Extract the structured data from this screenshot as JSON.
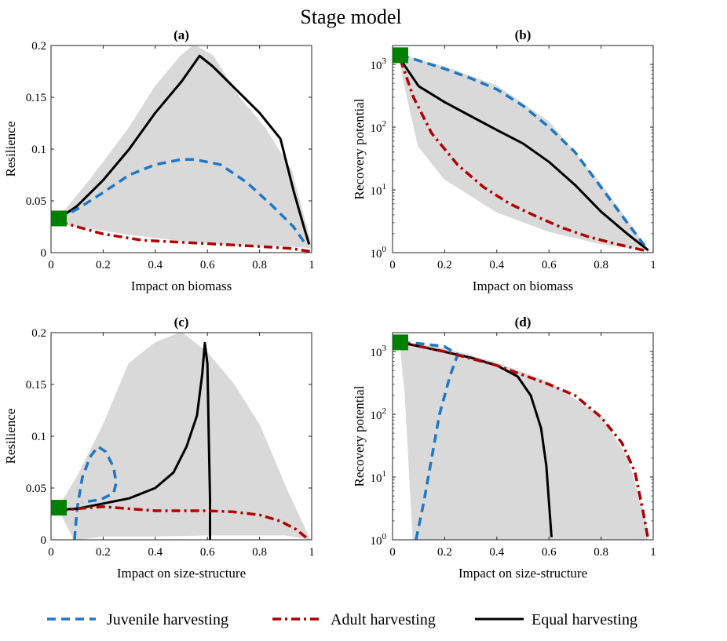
{
  "figure": {
    "title": "Stage model",
    "legend": [
      {
        "label": "Juvenile harvesting",
        "color": "#1f77c4",
        "style": "dashed"
      },
      {
        "label": "Adult harvesting",
        "color": "#b00000",
        "style": "dashdot"
      },
      {
        "label": "Equal harvesting",
        "color": "#000000",
        "style": "solid"
      }
    ]
  },
  "chart_data": [
    {
      "panel": "(a)",
      "type": "line",
      "xlabel": "Impact on biomass",
      "ylabel": "Resilience",
      "xlim": [
        0,
        1
      ],
      "ylim": [
        0,
        0.2
      ],
      "yscale": "linear",
      "xticks": [
        0,
        0.2,
        0.4,
        0.6,
        0.8,
        1
      ],
      "xticklabels": [
        "0",
        "0.2",
        "0.4",
        "0.6",
        "0.8",
        "1"
      ],
      "yticks": [
        0,
        0.05,
        0.1,
        0.15,
        0.2
      ],
      "yticklabels": [
        "0",
        "0.05",
        "0.1",
        "0.15",
        "0.2"
      ],
      "marker": {
        "x": 0.03,
        "y": 0.033,
        "color": "#008000"
      },
      "envelope_color": "#d9d9d9",
      "envelope": [
        [
          0.03,
          0.033
        ],
        [
          0.15,
          0.07
        ],
        [
          0.3,
          0.12
        ],
        [
          0.4,
          0.16
        ],
        [
          0.5,
          0.19
        ],
        [
          0.55,
          0.2
        ],
        [
          0.62,
          0.19
        ],
        [
          0.72,
          0.15
        ],
        [
          0.82,
          0.12
        ],
        [
          0.92,
          0.08
        ],
        [
          1.0,
          0.005
        ],
        [
          0.9,
          0.007
        ],
        [
          0.7,
          0.008
        ],
        [
          0.5,
          0.012
        ],
        [
          0.3,
          0.018
        ],
        [
          0.1,
          0.026
        ],
        [
          0.03,
          0.028
        ]
      ],
      "series": [
        {
          "name": "Equal harvesting",
          "points": [
            [
              0.03,
              0.033
            ],
            [
              0.1,
              0.045
            ],
            [
              0.2,
              0.07
            ],
            [
              0.3,
              0.1
            ],
            [
              0.4,
              0.135
            ],
            [
              0.5,
              0.165
            ],
            [
              0.57,
              0.19
            ],
            [
              0.62,
              0.18
            ],
            [
              0.7,
              0.16
            ],
            [
              0.8,
              0.135
            ],
            [
              0.88,
              0.11
            ],
            [
              0.93,
              0.06
            ],
            [
              0.97,
              0.025
            ],
            [
              0.99,
              0.008
            ]
          ]
        },
        {
          "name": "Juvenile harvesting",
          "points": [
            [
              0.03,
              0.033
            ],
            [
              0.1,
              0.042
            ],
            [
              0.2,
              0.058
            ],
            [
              0.3,
              0.075
            ],
            [
              0.4,
              0.085
            ],
            [
              0.5,
              0.09
            ],
            [
              0.55,
              0.09
            ],
            [
              0.65,
              0.085
            ],
            [
              0.75,
              0.068
            ],
            [
              0.85,
              0.045
            ],
            [
              0.93,
              0.025
            ],
            [
              0.98,
              0.007
            ]
          ]
        },
        {
          "name": "Adult harvesting",
          "points": [
            [
              0.03,
              0.03
            ],
            [
              0.1,
              0.025
            ],
            [
              0.2,
              0.018
            ],
            [
              0.35,
              0.012
            ],
            [
              0.5,
              0.01
            ],
            [
              0.65,
              0.008
            ],
            [
              0.8,
              0.006
            ],
            [
              0.92,
              0.004
            ],
            [
              1.0,
              0.001
            ]
          ]
        }
      ]
    },
    {
      "panel": "(b)",
      "type": "line",
      "xlabel": "Impact on biomass",
      "ylabel": "Recovery potential",
      "xlim": [
        0,
        1
      ],
      "ylim": [
        1,
        2000
      ],
      "yscale": "log",
      "xticks": [
        0,
        0.2,
        0.4,
        0.6,
        0.8,
        1
      ],
      "xticklabels": [
        "0",
        "0.2",
        "0.4",
        "0.6",
        "0.8",
        "1"
      ],
      "yticks": [
        1,
        10,
        100,
        1000
      ],
      "yticklabels": [
        [
          "10",
          "0"
        ],
        [
          "10",
          "1"
        ],
        [
          "10",
          "2"
        ],
        [
          "10",
          "3"
        ]
      ],
      "marker": {
        "x": 0.03,
        "y": 1400,
        "color": "#008000"
      },
      "envelope_color": "#d9d9d9",
      "envelope": [
        [
          0.03,
          1400
        ],
        [
          0.2,
          900
        ],
        [
          0.4,
          450
        ],
        [
          0.6,
          120
        ],
        [
          0.8,
          12
        ],
        [
          0.98,
          1.1
        ],
        [
          0.8,
          1.4
        ],
        [
          0.6,
          2.2
        ],
        [
          0.4,
          4.5
        ],
        [
          0.2,
          15
        ],
        [
          0.1,
          50
        ],
        [
          0.03,
          1000
        ]
      ],
      "series": [
        {
          "name": "Juvenile harvesting",
          "points": [
            [
              0.03,
              1400
            ],
            [
              0.1,
              1150
            ],
            [
              0.2,
              850
            ],
            [
              0.3,
              600
            ],
            [
              0.4,
              400
            ],
            [
              0.5,
              220
            ],
            [
              0.6,
              100
            ],
            [
              0.7,
              40
            ],
            [
              0.8,
              11
            ],
            [
              0.9,
              3
            ],
            [
              0.98,
              1.1
            ]
          ]
        },
        {
          "name": "Equal harvesting",
          "points": [
            [
              0.03,
              1200
            ],
            [
              0.1,
              450
            ],
            [
              0.2,
              250
            ],
            [
              0.3,
              150
            ],
            [
              0.4,
              90
            ],
            [
              0.5,
              55
            ],
            [
              0.6,
              28
            ],
            [
              0.7,
              12
            ],
            [
              0.8,
              4.5
            ],
            [
              0.9,
              2
            ],
            [
              0.98,
              1.1
            ]
          ]
        },
        {
          "name": "Adult harvesting",
          "points": [
            [
              0.03,
              1200
            ],
            [
              0.08,
              300
            ],
            [
              0.15,
              80
            ],
            [
              0.25,
              25
            ],
            [
              0.35,
              11
            ],
            [
              0.45,
              6
            ],
            [
              0.55,
              3.8
            ],
            [
              0.65,
              2.5
            ],
            [
              0.75,
              1.8
            ],
            [
              0.85,
              1.4
            ],
            [
              0.98,
              1.05
            ]
          ]
        }
      ]
    },
    {
      "panel": "(c)",
      "type": "line",
      "xlabel": "Impact on size-structure",
      "ylabel": "Resilience",
      "xlim": [
        0,
        1
      ],
      "ylim": [
        0,
        0.2
      ],
      "yscale": "linear",
      "xticks": [
        0,
        0.2,
        0.4,
        0.6,
        0.8,
        1
      ],
      "xticklabels": [
        "0",
        "0.2",
        "0.4",
        "0.6",
        "0.8",
        "1"
      ],
      "yticks": [
        0,
        0.05,
        0.1,
        0.15,
        0.2
      ],
      "yticklabels": [
        "0",
        "0.05",
        "0.1",
        "0.15",
        "0.2"
      ],
      "marker": {
        "x": 0.03,
        "y": 0.031,
        "color": "#008000"
      },
      "envelope_color": "#d9d9d9",
      "envelope": [
        [
          0.03,
          0.031
        ],
        [
          0.1,
          0.06
        ],
        [
          0.2,
          0.11
        ],
        [
          0.3,
          0.17
        ],
        [
          0.4,
          0.19
        ],
        [
          0.5,
          0.2
        ],
        [
          0.6,
          0.18
        ],
        [
          0.7,
          0.15
        ],
        [
          0.8,
          0.11
        ],
        [
          0.9,
          0.05
        ],
        [
          0.99,
          0.001
        ],
        [
          0.9,
          0.005
        ],
        [
          0.8,
          0.005
        ],
        [
          0.6,
          0.005
        ],
        [
          0.4,
          0.004
        ],
        [
          0.2,
          0.004
        ],
        [
          0.09,
          0.0
        ],
        [
          0.05,
          0.02
        ]
      ],
      "series": [
        {
          "name": "Juvenile harvesting",
          "points": [
            [
              0.09,
              0.0
            ],
            [
              0.1,
              0.03
            ],
            [
              0.12,
              0.06
            ],
            [
              0.15,
              0.08
            ],
            [
              0.18,
              0.09
            ],
            [
              0.21,
              0.085
            ],
            [
              0.24,
              0.07
            ],
            [
              0.25,
              0.055
            ],
            [
              0.24,
              0.045
            ],
            [
              0.2,
              0.04
            ],
            [
              0.17,
              0.038
            ],
            [
              0.14,
              0.037
            ],
            [
              0.12,
              0.036
            ]
          ]
        },
        {
          "name": "Equal harvesting",
          "points": [
            [
              0.03,
              0.029
            ],
            [
              0.1,
              0.03
            ],
            [
              0.2,
              0.035
            ],
            [
              0.3,
              0.04
            ],
            [
              0.4,
              0.05
            ],
            [
              0.47,
              0.065
            ],
            [
              0.52,
              0.09
            ],
            [
              0.56,
              0.12
            ],
            [
              0.58,
              0.16
            ],
            [
              0.59,
              0.19
            ],
            [
              0.6,
              0.17
            ],
            [
              0.605,
              0.1
            ],
            [
              0.61,
              0.04
            ],
            [
              0.61,
              0.0
            ]
          ]
        },
        {
          "name": "Adult harvesting",
          "points": [
            [
              0.03,
              0.028
            ],
            [
              0.1,
              0.03
            ],
            [
              0.2,
              0.032
            ],
            [
              0.3,
              0.03
            ],
            [
              0.4,
              0.028
            ],
            [
              0.5,
              0.028
            ],
            [
              0.6,
              0.028
            ],
            [
              0.7,
              0.027
            ],
            [
              0.8,
              0.024
            ],
            [
              0.88,
              0.018
            ],
            [
              0.94,
              0.01
            ],
            [
              0.98,
              0.002
            ]
          ]
        }
      ]
    },
    {
      "panel": "(d)",
      "type": "line",
      "xlabel": "Impact on size-structure",
      "ylabel": "Recovery potential",
      "xlim": [
        0,
        1
      ],
      "ylim": [
        1,
        2000
      ],
      "yscale": "log",
      "xticks": [
        0,
        0.2,
        0.4,
        0.6,
        0.8,
        1
      ],
      "xticklabels": [
        "0",
        "0.2",
        "0.4",
        "0.6",
        "0.8",
        "1"
      ],
      "yticks": [
        1,
        10,
        100,
        1000
      ],
      "yticklabels": [
        [
          "10",
          "0"
        ],
        [
          "10",
          "1"
        ],
        [
          "10",
          "2"
        ],
        [
          "10",
          "3"
        ]
      ],
      "marker": {
        "x": 0.03,
        "y": 1400,
        "color": "#008000"
      },
      "envelope_color": "#d9d9d9",
      "envelope": [
        [
          0.03,
          1400
        ],
        [
          0.2,
          1100
        ],
        [
          0.4,
          650
        ],
        [
          0.6,
          320
        ],
        [
          0.8,
          90
        ],
        [
          0.9,
          20
        ],
        [
          0.97,
          2
        ],
        [
          0.98,
          1
        ],
        [
          0.08,
          1
        ],
        [
          0.05,
          200
        ]
      ],
      "series": [
        {
          "name": "Juvenile harvesting",
          "points": [
            [
              0.09,
              1.0
            ],
            [
              0.12,
              4
            ],
            [
              0.15,
              20
            ],
            [
              0.18,
              100
            ],
            [
              0.22,
              400
            ],
            [
              0.25,
              900
            ],
            [
              0.2,
              1200
            ],
            [
              0.1,
              1350
            ],
            [
              0.03,
              1400
            ]
          ]
        },
        {
          "name": "Equal harvesting",
          "points": [
            [
              0.03,
              1400
            ],
            [
              0.15,
              1100
            ],
            [
              0.3,
              800
            ],
            [
              0.4,
              600
            ],
            [
              0.48,
              400
            ],
            [
              0.53,
              200
            ],
            [
              0.57,
              60
            ],
            [
              0.59,
              15
            ],
            [
              0.6,
              4
            ],
            [
              0.61,
              1.1
            ]
          ]
        },
        {
          "name": "Adult harvesting",
          "points": [
            [
              0.03,
              1400
            ],
            [
              0.2,
              1000
            ],
            [
              0.4,
              600
            ],
            [
              0.6,
              300
            ],
            [
              0.7,
              200
            ],
            [
              0.8,
              90
            ],
            [
              0.88,
              35
            ],
            [
              0.93,
              12
            ],
            [
              0.96,
              3
            ],
            [
              0.98,
              1.05
            ]
          ]
        }
      ]
    }
  ]
}
